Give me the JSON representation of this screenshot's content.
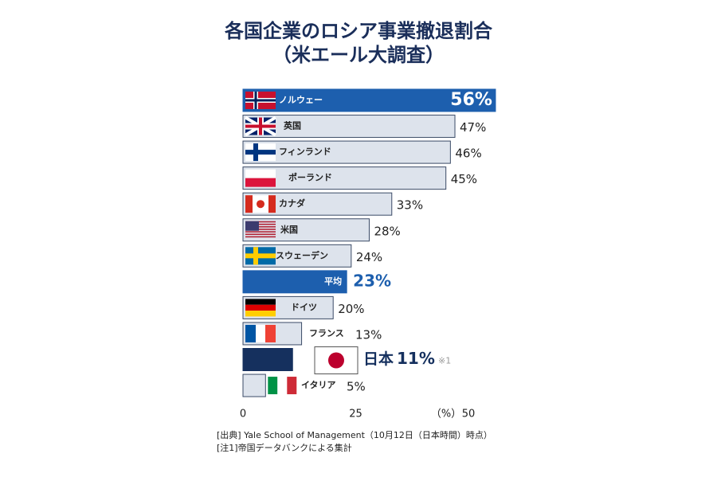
{
  "chart_data": {
    "type": "hbar",
    "title": "各国企業のロシア事業撤退割合",
    "subtitle": "（米エール大調査）",
    "categories": [
      "ノルウェー",
      "英国",
      "フィンランド",
      "ポーランド",
      "カナダ",
      "米国",
      "スウェーデン",
      "平均",
      "ドイツ",
      "フランス",
      "日本",
      "イタリア"
    ],
    "values": [
      56,
      47,
      46,
      45,
      33,
      28,
      24,
      23,
      20,
      13,
      11,
      5
    ],
    "value_labels": [
      "56%",
      "47%",
      "46%",
      "45%",
      "33%",
      "28%",
      "24%",
      "23%",
      "20%",
      "13%",
      "11%",
      "5%"
    ],
    "colors": [
      "#1d5fae",
      "#dde3ec",
      "#dde3ec",
      "#dde3ec",
      "#dde3ec",
      "#dde3ec",
      "#dde3ec",
      "#1d5fae",
      "#dde3ec",
      "#dde3ec",
      "#15305e",
      "#dde3ec"
    ],
    "xlim": [
      0,
      50
    ],
    "xticks": [
      0,
      25,
      50
    ],
    "x_label": "（%）",
    "annotation": "※1",
    "notes": [
      "[出典] Yale School of Management（10月12日（日本時間）時点）",
      "[注1]帝国データバンクによる集計"
    ]
  }
}
